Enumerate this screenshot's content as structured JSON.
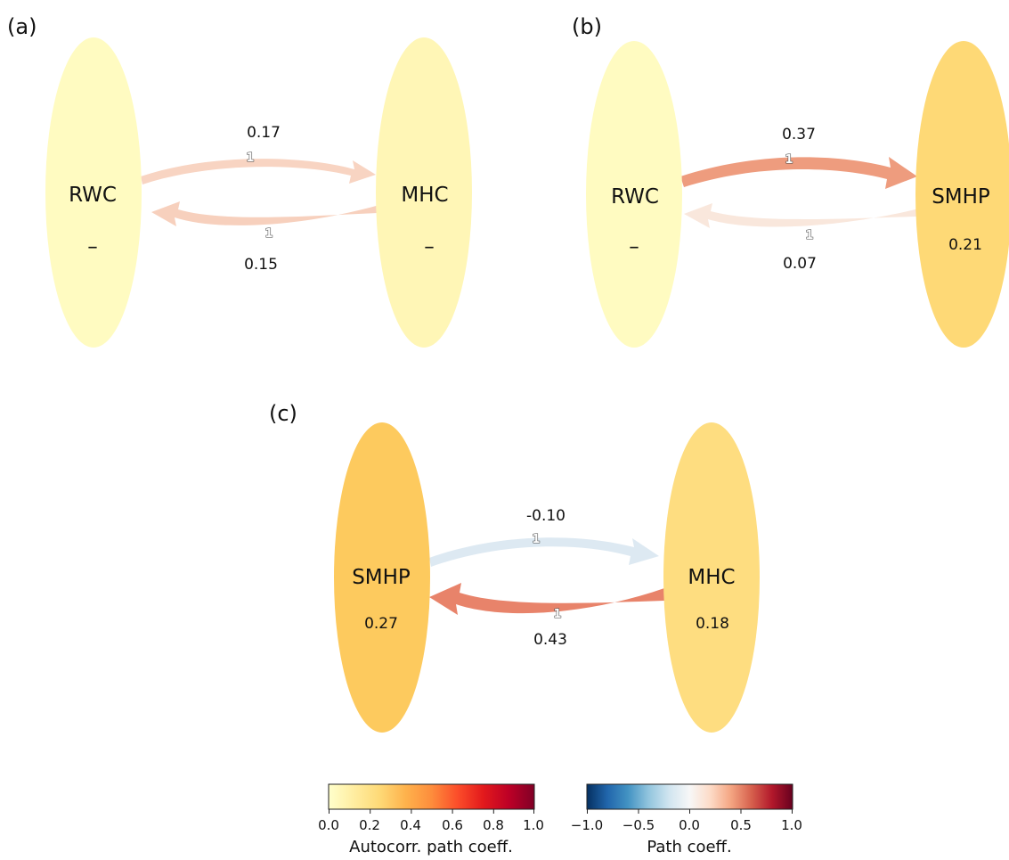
{
  "colors": {
    "autocorr_gradient": [
      "#ffffcc",
      "#ffeda0",
      "#fed976",
      "#feb24c",
      "#fd8d3c",
      "#fc4e2a",
      "#e31a1c",
      "#bd0026",
      "#800026"
    ],
    "path_gradient": [
      "#053061",
      "#2166ac",
      "#4393c3",
      "#92c5de",
      "#d1e5f0",
      "#f7f7f7",
      "#fddbc7",
      "#f4a582",
      "#d6604d",
      "#b2182b",
      "#67001f"
    ]
  },
  "panels": [
    {
      "label": "(a)",
      "nodes": [
        {
          "name": "RWC",
          "value": "–",
          "color": "#fffbc1"
        },
        {
          "name": "MHC",
          "value": "–",
          "color": "#fff6b6"
        }
      ],
      "edges": [
        {
          "value": "0.17",
          "lag": "1",
          "color": "#f8d4c2",
          "direction": "left-to-right"
        },
        {
          "value": "0.15",
          "lag": "1",
          "color": "#f7d0bd",
          "direction": "right-to-left"
        }
      ]
    },
    {
      "label": "(b)",
      "nodes": [
        {
          "name": "RWC",
          "value": "–",
          "color": "#fffbc1"
        },
        {
          "name": "SMHP",
          "value": "0.21",
          "color": "#fed976"
        }
      ],
      "edges": [
        {
          "value": "0.37",
          "lag": "1",
          "color": "#ee9c7e",
          "direction": "left-to-right"
        },
        {
          "value": "0.07",
          "lag": "1",
          "color": "#f9e7dc",
          "direction": "right-to-left"
        }
      ]
    },
    {
      "label": "(c)",
      "nodes": [
        {
          "name": "SMHP",
          "value": "0.27",
          "color": "#fdca5e"
        },
        {
          "name": "MHC",
          "value": "0.18",
          "color": "#fedd80"
        }
      ],
      "edges": [
        {
          "value": "-0.10",
          "lag": "1",
          "color": "#dde9f2",
          "direction": "left-to-right"
        },
        {
          "value": "0.43",
          "lag": "1",
          "color": "#e8836a",
          "direction": "right-to-left"
        }
      ]
    }
  ],
  "colorbars": [
    {
      "label": "Autocorr. path coeff.",
      "ticks": [
        "0.0",
        "0.2",
        "0.4",
        "0.6",
        "0.8",
        "1.0"
      ]
    },
    {
      "label": "Path coeff.",
      "ticks": [
        "−1.0",
        "−0.5",
        "0.0",
        "0.5",
        "1.0"
      ]
    }
  ]
}
